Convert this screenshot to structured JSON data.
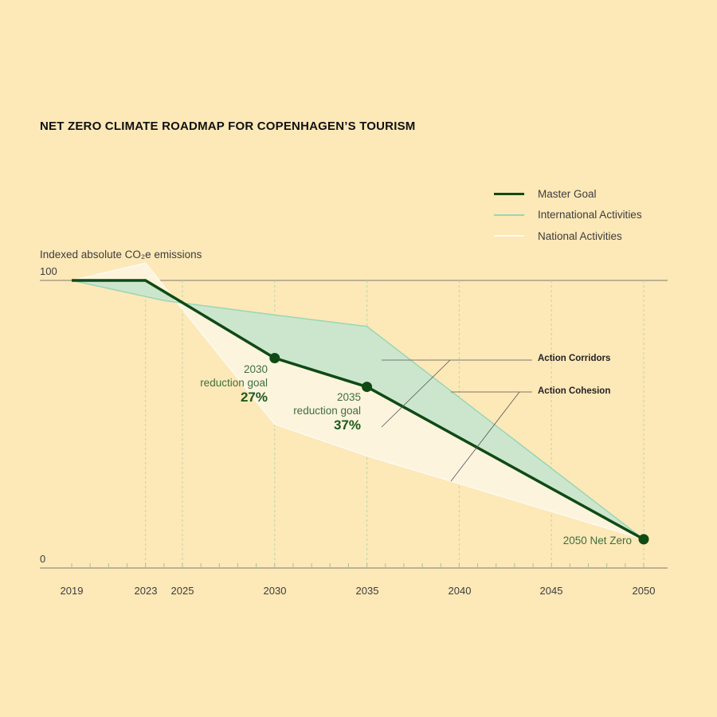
{
  "title": "NET ZERO CLIMATE ROADMAP FOR COPENHAGEN’S TOURISM",
  "legend": [
    {
      "label": "Master Goal",
      "color": "#0f4a14",
      "width": "thick"
    },
    {
      "label": "International Activities",
      "color": "#9ad6b4",
      "width": "thin"
    },
    {
      "label": "National Activities",
      "color": "#fffaf0",
      "width": "thin"
    }
  ],
  "annotations": {
    "goal_2030": {
      "year": "2030",
      "text": "reduction goal",
      "pct": "27%"
    },
    "goal_2035": {
      "year": "2035",
      "text": "reduction goal",
      "pct": "37%"
    },
    "net_zero": "2050 Net Zero",
    "action_corridors": "Action Corridors",
    "action_cohesion": "Action Cohesion"
  },
  "chart_data": {
    "type": "line",
    "title": "NET ZERO CLIMATE ROADMAP FOR COPENHAGEN’S TOURISM",
    "ylabel": "Indexed absolute CO₂e emissions",
    "xlabel": "",
    "x_ticks": [
      2019,
      2023,
      2025,
      2030,
      2035,
      2040,
      2045,
      2050
    ],
    "y_ticks": [
      0,
      100
    ],
    "xlim": [
      2019,
      2050
    ],
    "ylim": [
      0,
      100
    ],
    "grid": "vertical dashed at labeled years",
    "legend_position": "top-right",
    "series": [
      {
        "name": "Master Goal",
        "color": "#0f4a14",
        "points": [
          [
            2019,
            100
          ],
          [
            2023,
            100
          ],
          [
            2030,
            73
          ],
          [
            2035,
            63
          ],
          [
            2050,
            10
          ]
        ]
      },
      {
        "name": "International Activities",
        "color": "#9ad6b4",
        "points": [
          [
            2019,
            100
          ],
          [
            2024,
            93
          ],
          [
            2030,
            88
          ],
          [
            2035,
            84
          ],
          [
            2050,
            10
          ]
        ]
      },
      {
        "name": "National Activities",
        "color": "#fffaf0",
        "points": [
          [
            2019,
            100
          ],
          [
            2023,
            106
          ],
          [
            2030,
            50
          ],
          [
            2035,
            39
          ],
          [
            2050,
            10
          ]
        ]
      }
    ],
    "markers": [
      {
        "series": "Master Goal",
        "x": 2030,
        "y": 73
      },
      {
        "series": "Master Goal",
        "x": 2035,
        "y": 63
      },
      {
        "series": "Master Goal",
        "x": 2050,
        "y": 10
      }
    ]
  }
}
